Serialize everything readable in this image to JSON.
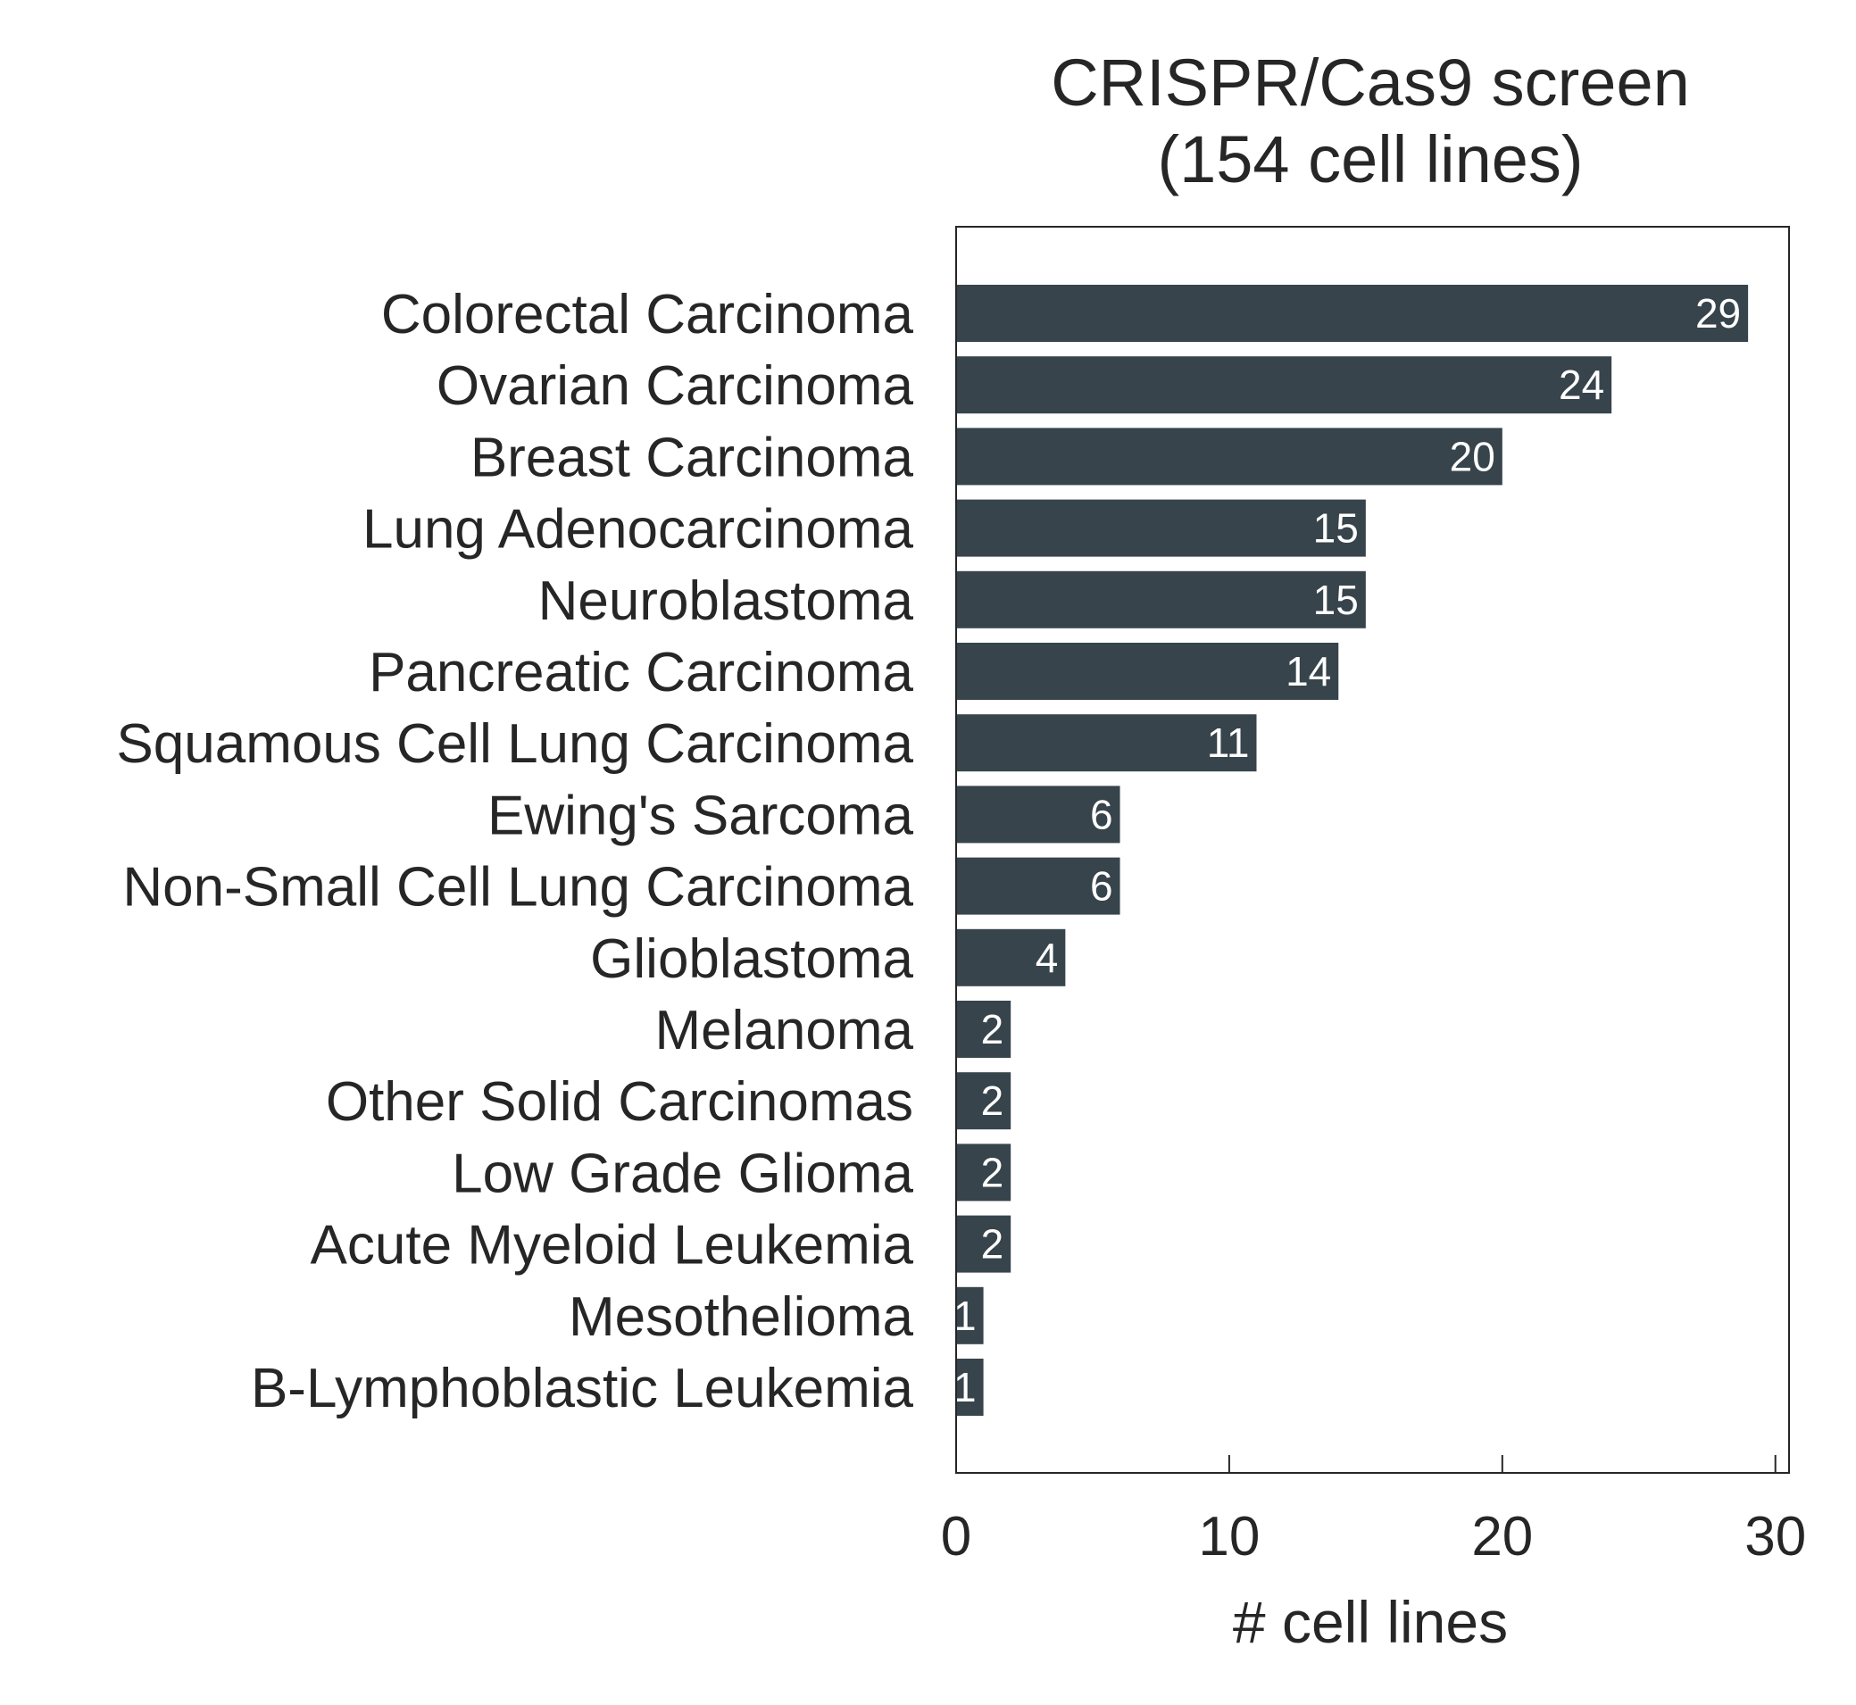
{
  "chart_data": {
    "type": "bar",
    "orientation": "horizontal",
    "title_lines": [
      "CRISPR/Cas9 screen",
      "(154 cell lines)"
    ],
    "xlabel": "# cell lines",
    "ylabel": "",
    "xlim": [
      0,
      30.5
    ],
    "xticks": [
      0,
      10,
      20,
      30
    ],
    "grid": false,
    "categories": [
      "Colorectal Carcinoma",
      "Ovarian Carcinoma",
      "Breast Carcinoma",
      "Lung Adenocarcinoma",
      "Neuroblastoma",
      "Pancreatic Carcinoma",
      "Squamous Cell Lung Carcinoma",
      "Ewing's Sarcoma",
      "Non-Small Cell Lung Carcinoma",
      "Glioblastoma",
      "Melanoma",
      "Other Solid Carcinomas",
      "Low Grade Glioma",
      "Acute Myeloid Leukemia",
      "Mesothelioma",
      "B-Lymphoblastic Leukemia"
    ],
    "values": [
      29,
      24,
      20,
      15,
      15,
      14,
      11,
      6,
      6,
      4,
      2,
      2,
      2,
      2,
      1,
      1
    ],
    "bar_color": "#37444b",
    "data_labels": true
  }
}
